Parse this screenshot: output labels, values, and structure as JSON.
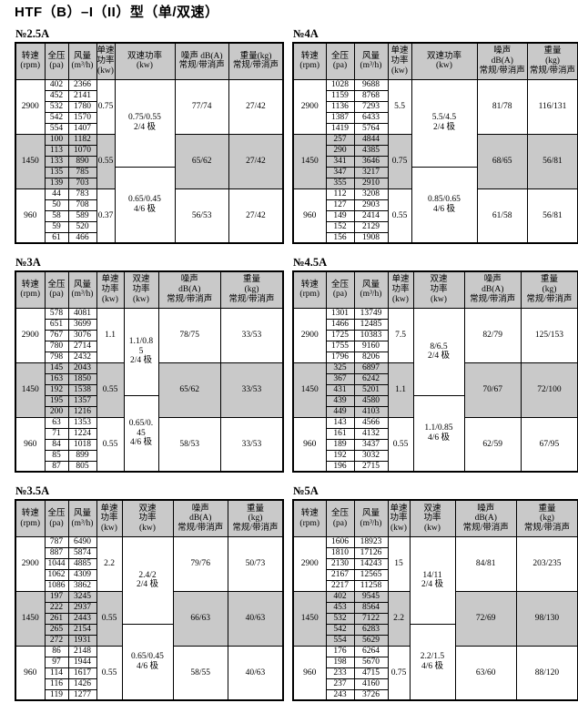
{
  "page_title": "HTF（B）–I（II）型（单/双速）",
  "colors": {
    "shade": "#c9c9c9",
    "border": "#000000",
    "page_bg": "#ffffff",
    "text": "#000000"
  },
  "tables": [
    {
      "label": "№2.5A",
      "headers": [
        "转速\n(rpm)",
        "全压\n(pa)",
        "风量\n(m³/h)",
        "单速\n功率\n(kw)",
        "双速功率\n(kw)",
        "噪声 dB(A)\n常规/带消声",
        "重量(kg)\n常规/带消声"
      ],
      "dual_power": [
        {
          "text": "0.75/0.55\n2/4 极",
          "span": 8
        },
        {
          "text": "0.65/0.45\n4/6 极",
          "span": 7
        }
      ],
      "groups": [
        {
          "rpm": "2900",
          "shaded": false,
          "single_power": "0.75",
          "noise": "77/74",
          "weight": "27/42",
          "rows": [
            [
              "402",
              "2366"
            ],
            [
              "452",
              "2141"
            ],
            [
              "532",
              "1780"
            ],
            [
              "542",
              "1570"
            ],
            [
              "554",
              "1407"
            ]
          ]
        },
        {
          "rpm": "1450",
          "shaded": true,
          "single_power": "0.55",
          "noise": "65/62",
          "weight": "27/42",
          "rows": [
            [
              "100",
              "1182"
            ],
            [
              "113",
              "1070"
            ],
            [
              "133",
              "890"
            ],
            [
              "135",
              "785"
            ],
            [
              "139",
              "703"
            ]
          ]
        },
        {
          "rpm": "960",
          "shaded": false,
          "single_power": "0.37",
          "noise": "56/53",
          "weight": "27/42",
          "rows": [
            [
              "44",
              "783"
            ],
            [
              "50",
              "708"
            ],
            [
              "58",
              "589"
            ],
            [
              "59",
              "520"
            ],
            [
              "61",
              "466"
            ]
          ]
        }
      ]
    },
    {
      "label": "№4A",
      "headers": [
        "转速\n(rpm)",
        "全压\n(pa)",
        "风量\n(m³/h)",
        "单速\n功率\n(kw)",
        "双速功率\n(kw)",
        "噪声\ndB(A)\n常规/带消声",
        "重量\n(kg)\n常规/带消声"
      ],
      "dual_power": [
        {
          "text": "5.5/4.5\n2/4 极",
          "span": 8
        },
        {
          "text": "0.85/0.65\n4/6 极",
          "span": 7
        }
      ],
      "groups": [
        {
          "rpm": "2900",
          "shaded": false,
          "single_power": "5.5",
          "noise": "81/78",
          "weight": "116/131",
          "rows": [
            [
              "1028",
              "9688"
            ],
            [
              "1159",
              "8768"
            ],
            [
              "1136",
              "7293"
            ],
            [
              "1387",
              "6433"
            ],
            [
              "1419",
              "5764"
            ]
          ]
        },
        {
          "rpm": "1450",
          "shaded": true,
          "single_power": "0.75",
          "noise": "68/65",
          "weight": "56/81",
          "rows": [
            [
              "257",
              "4844"
            ],
            [
              "290",
              "4385"
            ],
            [
              "341",
              "3646"
            ],
            [
              "347",
              "3217"
            ],
            [
              "355",
              "2910"
            ]
          ]
        },
        {
          "rpm": "960",
          "shaded": false,
          "single_power": "0.55",
          "noise": "61/58",
          "weight": "56/81",
          "rows": [
            [
              "112",
              "3208"
            ],
            [
              "127",
              "2903"
            ],
            [
              "149",
              "2414"
            ],
            [
              "152",
              "2129"
            ],
            [
              "156",
              "1908"
            ]
          ]
        }
      ]
    },
    {
      "label": "№3A",
      "headers": [
        "转速\n(rpm)",
        "全压\n(pa)",
        "风量\n(m³/h)",
        "单速\n功率\n(kw)",
        "双速\n功率\n(kw)",
        "噪声\ndB(A)\n常规/带消声",
        "重量\n(kg)\n常规/带消声"
      ],
      "dual_power": [
        {
          "text": "1.1/0.8\n5\n2/4 极",
          "span": 8
        },
        {
          "text": "0.65/0.\n45\n4/6 极",
          "span": 7
        }
      ],
      "groups": [
        {
          "rpm": "2900",
          "shaded": false,
          "single_power": "1.1",
          "noise": "78/75",
          "weight": "33/53",
          "rows": [
            [
              "578",
              "4081"
            ],
            [
              "651",
              "3699"
            ],
            [
              "767",
              "3076"
            ],
            [
              "780",
              "2714"
            ],
            [
              "798",
              "2432"
            ]
          ]
        },
        {
          "rpm": "1450",
          "shaded": true,
          "single_power": "0.55",
          "noise": "65/62",
          "weight": "33/53",
          "rows": [
            [
              "145",
              "2043"
            ],
            [
              "163",
              "1850"
            ],
            [
              "192",
              "1538"
            ],
            [
              "195",
              "1357"
            ],
            [
              "200",
              "1216"
            ]
          ]
        },
        {
          "rpm": "960",
          "shaded": false,
          "single_power": "0.55",
          "noise": "58/53",
          "weight": "33/53",
          "rows": [
            [
              "63",
              "1353"
            ],
            [
              "71",
              "1224"
            ],
            [
              "84",
              "1018"
            ],
            [
              "85",
              "899"
            ],
            [
              "87",
              "805"
            ]
          ]
        }
      ]
    },
    {
      "label": "№4.5A",
      "headers": [
        "转速\n(rpm)",
        "全压\n(pa)",
        "风量\n(m³/h)",
        "单速\n功率\n(kw)",
        "双速\n功率\n(kw)",
        "噪声\ndB(A)\n常规/带消声",
        "重量\n(kg)\n常规/带消声"
      ],
      "dual_power": [
        {
          "text": "8/6.5\n2/4 极",
          "span": 8
        },
        {
          "text": "1.1/0.85\n4/6 极",
          "span": 7
        }
      ],
      "groups": [
        {
          "rpm": "2900",
          "shaded": false,
          "single_power": "7.5",
          "noise": "82/79",
          "weight": "125/153",
          "rows": [
            [
              "1301",
              "13749"
            ],
            [
              "1466",
              "12485"
            ],
            [
              "1725",
              "10383"
            ],
            [
              "1755",
              "9160"
            ],
            [
              "1796",
              "8206"
            ]
          ]
        },
        {
          "rpm": "1450",
          "shaded": true,
          "single_power": "1.1",
          "noise": "70/67",
          "weight": "72/100",
          "rows": [
            [
              "325",
              "6897"
            ],
            [
              "367",
              "6242"
            ],
            [
              "431",
              "5201"
            ],
            [
              "439",
              "4580"
            ],
            [
              "449",
              "4103"
            ]
          ]
        },
        {
          "rpm": "960",
          "shaded": false,
          "single_power": "0.55",
          "noise": "62/59",
          "weight": "67/95",
          "rows": [
            [
              "143",
              "4566"
            ],
            [
              "161",
              "4132"
            ],
            [
              "189",
              "3437"
            ],
            [
              "192",
              "3032"
            ],
            [
              "196",
              "2715"
            ]
          ]
        }
      ]
    },
    {
      "label": "№3.5A",
      "headers": [
        "转速\n(rpm)",
        "全压\n(pa)",
        "风量\n(m³/h)",
        "单速\n功率\n(kw)",
        "双速\n功率\n(kw)",
        "噪声\ndB(A)\n常规/带消声",
        "重量\n(kg)\n常规/带消声"
      ],
      "dual_power": [
        {
          "text": "2.4/2\n2/4 极",
          "span": 8
        },
        {
          "text": "0.65/0.45\n4/6 极",
          "span": 7
        }
      ],
      "groups": [
        {
          "rpm": "2900",
          "shaded": false,
          "single_power": "2.2",
          "noise": "79/76",
          "weight": "50/73",
          "rows": [
            [
              "787",
              "6490"
            ],
            [
              "887",
              "5874"
            ],
            [
              "1044",
              "4885"
            ],
            [
              "1062",
              "4309"
            ],
            [
              "1086",
              "3862"
            ]
          ]
        },
        {
          "rpm": "1450",
          "shaded": true,
          "single_power": "0.55",
          "noise": "66/63",
          "weight": "40/63",
          "rows": [
            [
              "197",
              "3245"
            ],
            [
              "222",
              "2937"
            ],
            [
              "261",
              "2443"
            ],
            [
              "265",
              "2154"
            ],
            [
              "272",
              "1931"
            ]
          ]
        },
        {
          "rpm": "960",
          "shaded": false,
          "single_power": "0.55",
          "noise": "58/55",
          "weight": "40/63",
          "rows": [
            [
              "86",
              "2148"
            ],
            [
              "97",
              "1944"
            ],
            [
              "114",
              "1617"
            ],
            [
              "116",
              "1426"
            ],
            [
              "119",
              "1277"
            ]
          ]
        }
      ]
    },
    {
      "label": "№5A",
      "headers": [
        "转速\n(rpm)",
        "全压\n(pa)",
        "风量\n(m³/h)",
        "单速\n功率\n(kw)",
        "双速\n功率\n(kw)",
        "噪声\ndB(A)\n常规/带消声",
        "重量\n(kg)\n常规/带消声"
      ],
      "dual_power": [
        {
          "text": "14/11\n2/4 极",
          "span": 8
        },
        {
          "text": "2.2/1.5\n4/6 极",
          "span": 7
        }
      ],
      "groups": [
        {
          "rpm": "2900",
          "shaded": false,
          "single_power": "15",
          "noise": "84/81",
          "weight": "203/235",
          "rows": [
            [
              "1606",
              "18923"
            ],
            [
              "1810",
              "17126"
            ],
            [
              "2130",
              "14243"
            ],
            [
              "2167",
              "12565"
            ],
            [
              "2217",
              "11258"
            ]
          ]
        },
        {
          "rpm": "1450",
          "shaded": true,
          "single_power": "2.2",
          "noise": "72/69",
          "weight": "98/130",
          "rows": [
            [
              "402",
              "9545"
            ],
            [
              "453",
              "8564"
            ],
            [
              "532",
              "7122"
            ],
            [
              "542",
              "6283"
            ],
            [
              "554",
              "5629"
            ]
          ]
        },
        {
          "rpm": "960",
          "shaded": false,
          "single_power": "0.75",
          "noise": "63/60",
          "weight": "88/120",
          "rows": [
            [
              "176",
              "6264"
            ],
            [
              "198",
              "5670"
            ],
            [
              "233",
              "4715"
            ],
            [
              "237",
              "4160"
            ],
            [
              "243",
              "3726"
            ]
          ]
        }
      ]
    }
  ]
}
